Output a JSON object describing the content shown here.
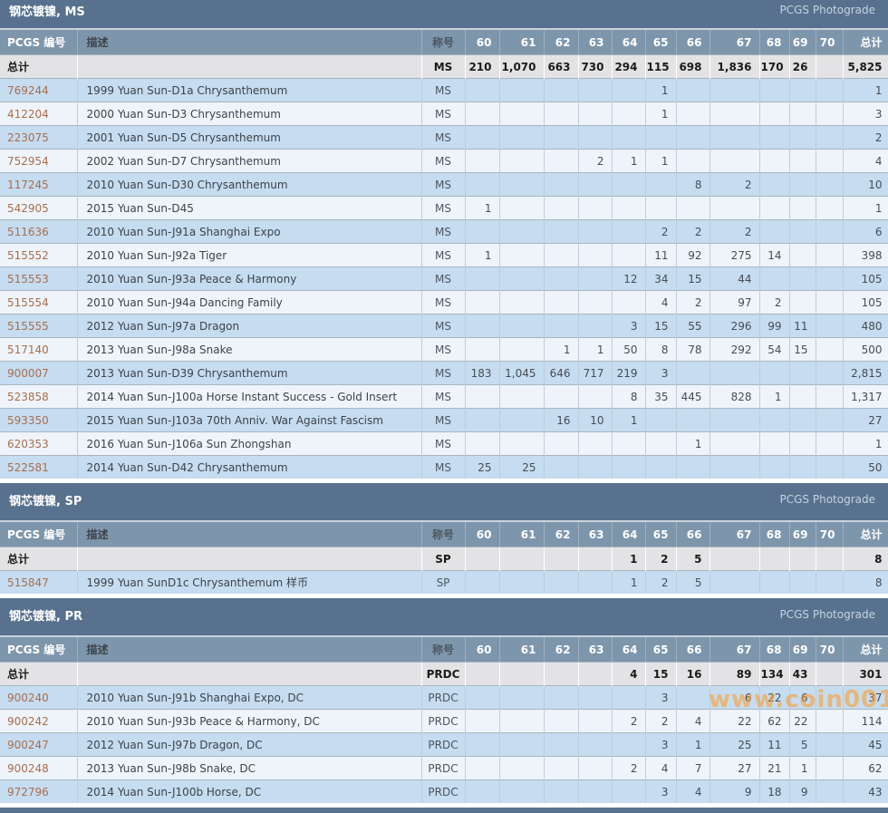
{
  "labels": {
    "pcgs_col": "PCGS 编号",
    "desc_col": "描述",
    "designation_col": "称号",
    "total_col": "总计",
    "total_row": "总计",
    "photograde": "PCGS Photograde"
  },
  "grade_columns": [
    "60",
    "61",
    "62",
    "63",
    "64",
    "65",
    "66",
    "67",
    "68",
    "69",
    "70"
  ],
  "watermark": "www.coin001.com",
  "colors": {
    "section_bar": "#57718E",
    "table_header_bg": "#7E96AC",
    "total_row_bg": "#E3E3E5",
    "row_odd": "#C6DCF0",
    "row_even": "#EEF4FA",
    "pcgs_link": "#A96E4D",
    "watermark": "#FF9A1F"
  },
  "sections": [
    {
      "title": "钢芯镀镍, MS",
      "total_row": {
        "designation": "MS",
        "grades": {
          "60": "210",
          "61": "1,070",
          "62": "663",
          "63": "730",
          "64": "294",
          "65": "115",
          "66": "698",
          "67": "1,836",
          "68": "170",
          "69": "26"
        },
        "total": "5,825"
      },
      "rows": [
        {
          "pcgs": "769244",
          "desc": "1999 Yuan Sun-D1a Chrysanthemum",
          "designation": "MS",
          "grades": {
            "65": "1"
          },
          "total": "1"
        },
        {
          "pcgs": "412204",
          "desc": "2000 Yuan Sun-D3 Chrysanthemum",
          "designation": "MS",
          "grades": {
            "65": "1"
          },
          "total": "3"
        },
        {
          "pcgs": "223075",
          "desc": "2001 Yuan Sun-D5 Chrysanthemum",
          "designation": "MS",
          "grades": {},
          "total": "2"
        },
        {
          "pcgs": "752954",
          "desc": "2002 Yuan Sun-D7 Chrysanthemum",
          "designation": "MS",
          "grades": {
            "63": "2",
            "64": "1",
            "65": "1"
          },
          "total": "4"
        },
        {
          "pcgs": "117245",
          "desc": "2010 Yuan Sun-D30 Chrysanthemum",
          "designation": "MS",
          "grades": {
            "66": "8",
            "67": "2"
          },
          "total": "10"
        },
        {
          "pcgs": "542905",
          "desc": "2015 Yuan Sun-D45",
          "designation": "MS",
          "grades": {
            "60": "1"
          },
          "total": "1"
        },
        {
          "pcgs": "511636",
          "desc": "2010 Yuan Sun-J91a Shanghai Expo",
          "designation": "MS",
          "grades": {
            "65": "2",
            "66": "2",
            "67": "2"
          },
          "total": "6"
        },
        {
          "pcgs": "515552",
          "desc": "2010 Yuan Sun-J92a Tiger",
          "designation": "MS",
          "grades": {
            "60": "1",
            "65": "11",
            "66": "92",
            "67": "275",
            "68": "14"
          },
          "total": "398"
        },
        {
          "pcgs": "515553",
          "desc": "2010 Yuan Sun-J93a Peace & Harmony",
          "designation": "MS",
          "grades": {
            "64": "12",
            "65": "34",
            "66": "15",
            "67": "44"
          },
          "total": "105"
        },
        {
          "pcgs": "515554",
          "desc": "2010 Yuan Sun-J94a Dancing Family",
          "designation": "MS",
          "grades": {
            "65": "4",
            "66": "2",
            "67": "97",
            "68": "2"
          },
          "total": "105"
        },
        {
          "pcgs": "515555",
          "desc": "2012 Yuan Sun-J97a Dragon",
          "designation": "MS",
          "grades": {
            "64": "3",
            "65": "15",
            "66": "55",
            "67": "296",
            "68": "99",
            "69": "11"
          },
          "total": "480"
        },
        {
          "pcgs": "517140",
          "desc": "2013 Yuan Sun-J98a Snake",
          "designation": "MS",
          "grades": {
            "62": "1",
            "63": "1",
            "64": "50",
            "65": "8",
            "66": "78",
            "67": "292",
            "68": "54",
            "69": "15"
          },
          "total": "500"
        },
        {
          "pcgs": "900007",
          "desc": "2013 Yuan Sun-D39 Chrysanthemum",
          "designation": "MS",
          "grades": {
            "60": "183",
            "61": "1,045",
            "62": "646",
            "63": "717",
            "64": "219",
            "65": "3"
          },
          "total": "2,815"
        },
        {
          "pcgs": "523858",
          "desc": "2014 Yuan Sun-J100a Horse Instant Success - Gold Insert",
          "designation": "MS",
          "grades": {
            "64": "8",
            "65": "35",
            "66": "445",
            "67": "828",
            "68": "1"
          },
          "total": "1,317"
        },
        {
          "pcgs": "593350",
          "desc": "2015 Yuan Sun-J103a 70th Anniv. War Against Fascism",
          "designation": "MS",
          "grades": {
            "62": "16",
            "63": "10",
            "64": "1"
          },
          "total": "27"
        },
        {
          "pcgs": "620353",
          "desc": "2016 Yuan Sun-J106a Sun Zhongshan",
          "designation": "MS",
          "grades": {
            "66": "1"
          },
          "total": "1"
        },
        {
          "pcgs": "522581",
          "desc": "2014 Yuan Sun-D42 Chrysanthemum",
          "designation": "MS",
          "grades": {
            "60": "25",
            "61": "25"
          },
          "total": "50"
        }
      ]
    },
    {
      "title": "钢芯镀镍, SP",
      "total_row": {
        "designation": "SP",
        "grades": {
          "64": "1",
          "65": "2",
          "66": "5"
        },
        "total": "8"
      },
      "rows": [
        {
          "pcgs": "515847",
          "desc": "1999 Yuan SunD1c Chrysanthemum 样币",
          "designation": "SP",
          "grades": {
            "64": "1",
            "65": "2",
            "66": "5"
          },
          "total": "8"
        }
      ]
    },
    {
      "title": "钢芯镀镍, PR",
      "total_row": {
        "designation": "PRDC",
        "grades": {
          "64": "4",
          "65": "15",
          "66": "16",
          "67": "89",
          "68": "134",
          "69": "43"
        },
        "total": "301"
      },
      "rows": [
        {
          "pcgs": "900240",
          "desc": "2010 Yuan Sun-J91b Shanghai Expo, DC",
          "designation": "PRDC",
          "grades": {
            "65": "3",
            "67": "6",
            "68": "22",
            "69": "6"
          },
          "total": "37"
        },
        {
          "pcgs": "900242",
          "desc": "2010 Yuan Sun-J93b Peace & Harmony, DC",
          "designation": "PRDC",
          "grades": {
            "64": "2",
            "65": "2",
            "66": "4",
            "67": "22",
            "68": "62",
            "69": "22"
          },
          "total": "114"
        },
        {
          "pcgs": "900247",
          "desc": "2012 Yuan Sun-J97b Dragon, DC",
          "designation": "PRDC",
          "grades": {
            "65": "3",
            "66": "1",
            "67": "25",
            "68": "11",
            "69": "5"
          },
          "total": "45"
        },
        {
          "pcgs": "900248",
          "desc": "2013 Yuan Sun-J98b Snake, DC",
          "designation": "PRDC",
          "grades": {
            "64": "2",
            "65": "4",
            "66": "7",
            "67": "27",
            "68": "21",
            "69": "1"
          },
          "total": "62"
        },
        {
          "pcgs": "972796",
          "desc": "2014 Yuan Sun-J100b Horse, DC",
          "designation": "PRDC",
          "grades": {
            "65": "3",
            "66": "4",
            "67": "9",
            "68": "18",
            "69": "9"
          },
          "total": "43"
        }
      ]
    }
  ]
}
